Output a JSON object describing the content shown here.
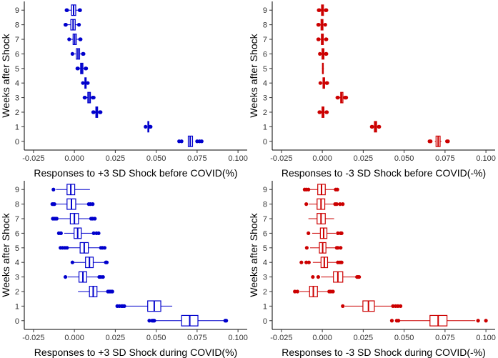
{
  "chart_data": [
    {
      "type": "boxplot",
      "orientation": "horizontal",
      "xlabel": "Responses to +3 SD Shock before COVID(%)",
      "ylabel": "Weeks after Shock",
      "xlim": [
        -0.025,
        0.1
      ],
      "xticks": [
        "-0.025",
        "0.000",
        "0.025",
        "0.050",
        "0.075",
        "0.100"
      ],
      "categories": [
        "0",
        "1",
        "2",
        "3",
        "4",
        "5",
        "6",
        "7",
        "8",
        "9"
      ],
      "color": "#0000cc",
      "grid": false,
      "boxes": [
        {
          "week": "0",
          "whislo": 0.0695,
          "q1": 0.0696,
          "med": 0.0708,
          "q3": 0.0722,
          "whishi": 0.0725,
          "outliers": [
            0.064,
            0.0655,
            0.075,
            0.0765,
            0.0778
          ]
        },
        {
          "week": "1",
          "whislo": 0.0447,
          "q1": 0.0449,
          "med": 0.0452,
          "q3": 0.0455,
          "whishi": 0.0458,
          "outliers": [
            0.0435,
            0.0462,
            0.0466
          ]
        },
        {
          "week": "2",
          "whislo": 0.0125,
          "q1": 0.0131,
          "med": 0.0136,
          "q3": 0.0142,
          "whishi": 0.0148,
          "outliers": [
            0.0115,
            0.0118,
            0.0155,
            0.0158,
            0.016
          ]
        },
        {
          "week": "3",
          "whislo": 0.0072,
          "q1": 0.0082,
          "med": 0.009,
          "q3": 0.0098,
          "whishi": 0.0105,
          "outliers": [
            0.0062,
            0.0065,
            0.0112,
            0.0118
          ]
        },
        {
          "week": "4",
          "whislo": 0.0058,
          "q1": 0.0064,
          "med": 0.0068,
          "q3": 0.0072,
          "whishi": 0.0077,
          "outliers": [
            0.0052,
            0.0082
          ]
        },
        {
          "week": "5",
          "whislo": 0.0028,
          "q1": 0.0038,
          "med": 0.0045,
          "q3": 0.0052,
          "whishi": 0.0062,
          "outliers": [
            0.0018,
            0.0022,
            0.0068,
            0.0072
          ]
        },
        {
          "week": "6",
          "whislo": -0.0002,
          "q1": 0.0012,
          "med": 0.0022,
          "q3": 0.0032,
          "whishi": 0.0045,
          "outliers": [
            -0.0012,
            0.0052,
            0.0056
          ]
        },
        {
          "week": "7",
          "whislo": -0.0022,
          "q1": -0.0008,
          "med": 0.0002,
          "q3": 0.0012,
          "whishi": 0.0028,
          "outliers": [
            -0.0032,
            0.0035,
            0.0038
          ]
        },
        {
          "week": "8",
          "whislo": -0.0045,
          "q1": -0.0022,
          "med": -0.0008,
          "q3": 0.0005,
          "whishi": 0.0022,
          "outliers": [
            -0.0055,
            -0.0052,
            0.0028
          ]
        },
        {
          "week": "9",
          "whislo": -0.004,
          "q1": -0.0018,
          "med": -0.0005,
          "q3": 0.0008,
          "whishi": 0.0025,
          "outliers": [
            -0.0048,
            -0.0045,
            0.0032,
            0.0035
          ]
        }
      ]
    },
    {
      "type": "boxplot",
      "orientation": "horizontal",
      "xlabel": "Responses to -3 SD Shock before COVID(-%)",
      "ylabel": "Weeks after Shock",
      "xlim": [
        -0.025,
        0.1
      ],
      "xticks": [
        "-0.025",
        "0.000",
        "0.025",
        "0.050",
        "0.075",
        "0.100"
      ],
      "categories": [
        "0",
        "1",
        "2",
        "3",
        "4",
        "5",
        "6",
        "7",
        "8",
        "9"
      ],
      "color": "#cc0000",
      "grid": false,
      "boxes": [
        {
          "week": "0",
          "whislo": 0.0688,
          "q1": 0.0695,
          "med": 0.0708,
          "q3": 0.072,
          "whishi": 0.0728,
          "outliers": [
            0.0655,
            0.0662,
            0.0762,
            0.0768
          ]
        },
        {
          "week": "1",
          "whislo": 0.0312,
          "q1": 0.0318,
          "med": 0.0325,
          "q3": 0.0332,
          "whishi": 0.0338,
          "outliers": [
            0.0302,
            0.0305,
            0.0345,
            0.0348
          ]
        },
        {
          "week": "2",
          "whislo": -0.0008,
          "q1": -0.0002,
          "med": 0.0004,
          "q3": 0.001,
          "whishi": 0.0018,
          "outliers": [
            -0.0018,
            -0.0015,
            0.0025,
            0.0028
          ]
        },
        {
          "week": "3",
          "whislo": 0.0105,
          "q1": 0.0112,
          "med": 0.0118,
          "q3": 0.0126,
          "whishi": 0.0132,
          "outliers": [
            0.0092,
            0.0096,
            0.0138,
            0.0142,
            0.0146
          ]
        },
        {
          "week": "4",
          "whislo": -0.0002,
          "q1": 0.0004,
          "med": 0.0008,
          "q3": 0.0014,
          "whishi": 0.002,
          "outliers": [
            -0.0012,
            0.0026,
            0.003
          ]
        },
        {
          "week": "5",
          "whislo": -0.0002,
          "q1": 0.0001,
          "med": 0.0003,
          "q3": 0.0006,
          "whishi": 0.0009
        },
        {
          "week": "6",
          "whislo": -0.0008,
          "q1": -0.0002,
          "med": 0.0004,
          "q3": 0.001,
          "whishi": 0.0016,
          "outliers": [
            -0.0015,
            0.0022,
            0.0025
          ]
        },
        {
          "week": "7",
          "whislo": -0.0015,
          "q1": -0.0006,
          "med": 0.0,
          "q3": 0.0006,
          "whishi": 0.0014,
          "outliers": [
            -0.0025,
            -0.0022,
            0.0022,
            0.0025
          ]
        },
        {
          "week": "8",
          "whislo": -0.0015,
          "q1": -0.0008,
          "med": -0.0002,
          "q3": 0.0004,
          "whishi": 0.0012,
          "outliers": [
            -0.0025,
            -0.0022,
            0.0018
          ]
        },
        {
          "week": "9",
          "whislo": -0.0012,
          "q1": -0.0005,
          "med": 0.0001,
          "q3": 0.0007,
          "whishi": 0.0014,
          "outliers": [
            -0.0022,
            -0.0018,
            0.0021,
            0.0025
          ]
        }
      ]
    },
    {
      "type": "boxplot",
      "orientation": "horizontal",
      "xlabel": "Responses to +3 SD Shock during COVID(%)",
      "ylabel": "Weeks after Shock",
      "xlim": [
        -0.025,
        0.1
      ],
      "xticks": [
        "-0.025",
        "0.000",
        "0.025",
        "0.050",
        "0.075",
        "0.100"
      ],
      "categories": [
        "0",
        "1",
        "2",
        "3",
        "4",
        "5",
        "6",
        "7",
        "8",
        "9"
      ],
      "color": "#0000cc",
      "grid": false,
      "boxes": [
        {
          "week": "0",
          "whislo": 0.0492,
          "q1": 0.0655,
          "med": 0.0705,
          "q3": 0.0755,
          "whishi": 0.0918,
          "outliers": [
            0.0458,
            0.0475,
            0.0482,
            0.0488,
            0.0922,
            0.0928
          ]
        },
        {
          "week": "1",
          "whislo": 0.0312,
          "q1": 0.0448,
          "med": 0.0488,
          "q3": 0.0528,
          "whishi": 0.0598,
          "outliers": [
            0.0262,
            0.0275,
            0.0288,
            0.0295,
            0.0305
          ]
        },
        {
          "week": "2",
          "whislo": 0.0022,
          "q1": 0.0092,
          "med": 0.0115,
          "q3": 0.0138,
          "whishi": 0.0198,
          "outliers": [
            0.0205,
            0.0212,
            0.0218,
            0.0225,
            0.0232
          ]
        },
        {
          "week": "3",
          "whislo": -0.0042,
          "q1": 0.0028,
          "med": 0.0052,
          "q3": 0.0075,
          "whishi": 0.0145,
          "outliers": [
            -0.0055,
            0.0152,
            0.0162,
            0.0175
          ]
        },
        {
          "week": "4",
          "whislo": -0.0002,
          "q1": 0.0068,
          "med": 0.0092,
          "q3": 0.0115,
          "whishi": 0.0185,
          "outliers": [
            -0.0012,
            0.0192,
            0.0198
          ]
        },
        {
          "week": "5",
          "whislo": -0.0035,
          "q1": 0.0035,
          "med": 0.006,
          "q3": 0.0085,
          "whishi": 0.0155,
          "outliers": [
            -0.0085,
            -0.0072,
            -0.0058,
            -0.0045,
            0.0162,
            0.0172,
            0.0185
          ]
        },
        {
          "week": "6",
          "whislo": -0.0062,
          "q1": -0.0002,
          "med": 0.002,
          "q3": 0.0042,
          "whishi": 0.0108,
          "outliers": [
            -0.0095,
            -0.0082,
            0.0118,
            0.0135,
            0.0148
          ]
        },
        {
          "week": "7",
          "whislo": -0.0095,
          "q1": -0.0025,
          "med": 0.0,
          "q3": 0.0025,
          "whishi": 0.0092,
          "outliers": [
            -0.0132,
            -0.0125,
            -0.0118,
            -0.0108,
            0.0102,
            0.0112,
            0.0125
          ]
        },
        {
          "week": "8",
          "whislo": -0.0115,
          "q1": -0.0045,
          "med": -0.0018,
          "q3": 0.0008,
          "whishi": 0.0078,
          "outliers": [
            -0.0135,
            -0.0128,
            -0.0122,
            0.0088,
            0.0098,
            0.0112
          ]
        },
        {
          "week": "9",
          "whislo": -0.0112,
          "q1": -0.0045,
          "med": -0.0022,
          "q3": 0.0002,
          "whishi": 0.0095,
          "outliers": [
            -0.0128
          ]
        }
      ]
    },
    {
      "type": "boxplot",
      "orientation": "horizontal",
      "xlabel": "Responses to -3 SD Shock during COVID(-%)",
      "ylabel": "Weeks after Shock",
      "xlim": [
        -0.025,
        0.1
      ],
      "xticks": [
        "-0.025",
        "0.000",
        "0.025",
        "0.050",
        "0.075",
        "0.100"
      ],
      "categories": [
        "0",
        "1",
        "2",
        "3",
        "4",
        "5",
        "6",
        "7",
        "8",
        "9"
      ],
      "color": "#cc0000",
      "grid": false,
      "boxes": [
        {
          "week": "0",
          "whislo": 0.0475,
          "q1": 0.0658,
          "med": 0.0708,
          "q3": 0.0762,
          "whishi": 0.0935,
          "outliers": [
            0.0425,
            0.0455,
            0.0465,
            0.0952,
            0.1
          ]
        },
        {
          "week": "1",
          "whislo": 0.0138,
          "q1": 0.0248,
          "med": 0.0282,
          "q3": 0.0318,
          "whishi": 0.0425,
          "outliers": [
            0.0125,
            0.0432,
            0.0448,
            0.0462,
            0.0478
          ]
        },
        {
          "week": "2",
          "whislo": -0.0138,
          "q1": -0.0078,
          "med": -0.0055,
          "q3": -0.003,
          "whishi": 0.0035,
          "outliers": [
            -0.0168,
            -0.0152,
            0.0042,
            0.0052,
            0.0065
          ]
        },
        {
          "week": "3",
          "whislo": -0.0008,
          "q1": 0.0068,
          "med": 0.0095,
          "q3": 0.0125,
          "whishi": 0.0205,
          "outliers": [
            -0.0058,
            -0.0025,
            0.0212,
            0.0218,
            0.0225
          ]
        },
        {
          "week": "4",
          "whislo": -0.0058,
          "q1": -0.0008,
          "med": 0.0012,
          "q3": 0.0032,
          "whishi": 0.0088,
          "outliers": [
            -0.0128,
            -0.0098,
            -0.0082,
            0.0095,
            0.0108,
            0.0118
          ]
        },
        {
          "week": "5",
          "whislo": -0.0075,
          "q1": -0.0018,
          "med": 0.0002,
          "q3": 0.0022,
          "whishi": 0.0078,
          "outliers": [
            -0.0095,
            0.0088,
            0.0095,
            0.0112
          ]
        },
        {
          "week": "6",
          "whislo": -0.0062,
          "q1": -0.0012,
          "med": 0.0008,
          "q3": 0.0028,
          "whishi": 0.0082,
          "outliers": [
            -0.0085,
            0.0095,
            0.0112,
            0.0118
          ]
        },
        {
          "week": "7",
          "whislo": -0.0085,
          "q1": -0.0032,
          "med": -0.0008,
          "q3": 0.0018,
          "whishi": 0.0072
        },
        {
          "week": "8",
          "whislo": -0.0082,
          "q1": -0.0032,
          "med": -0.0008,
          "q3": 0.0015,
          "whishi": 0.0068,
          "outliers": [
            -0.0098,
            0.0078,
            0.0088,
            0.0108,
            0.0125
          ]
        },
        {
          "week": "9",
          "whislo": -0.0078,
          "q1": -0.0028,
          "med": -0.0005,
          "q3": 0.0018,
          "whishi": 0.0072,
          "outliers": [
            -0.0108,
            -0.0098,
            -0.0085,
            0.0082,
            0.0092
          ]
        }
      ]
    }
  ]
}
